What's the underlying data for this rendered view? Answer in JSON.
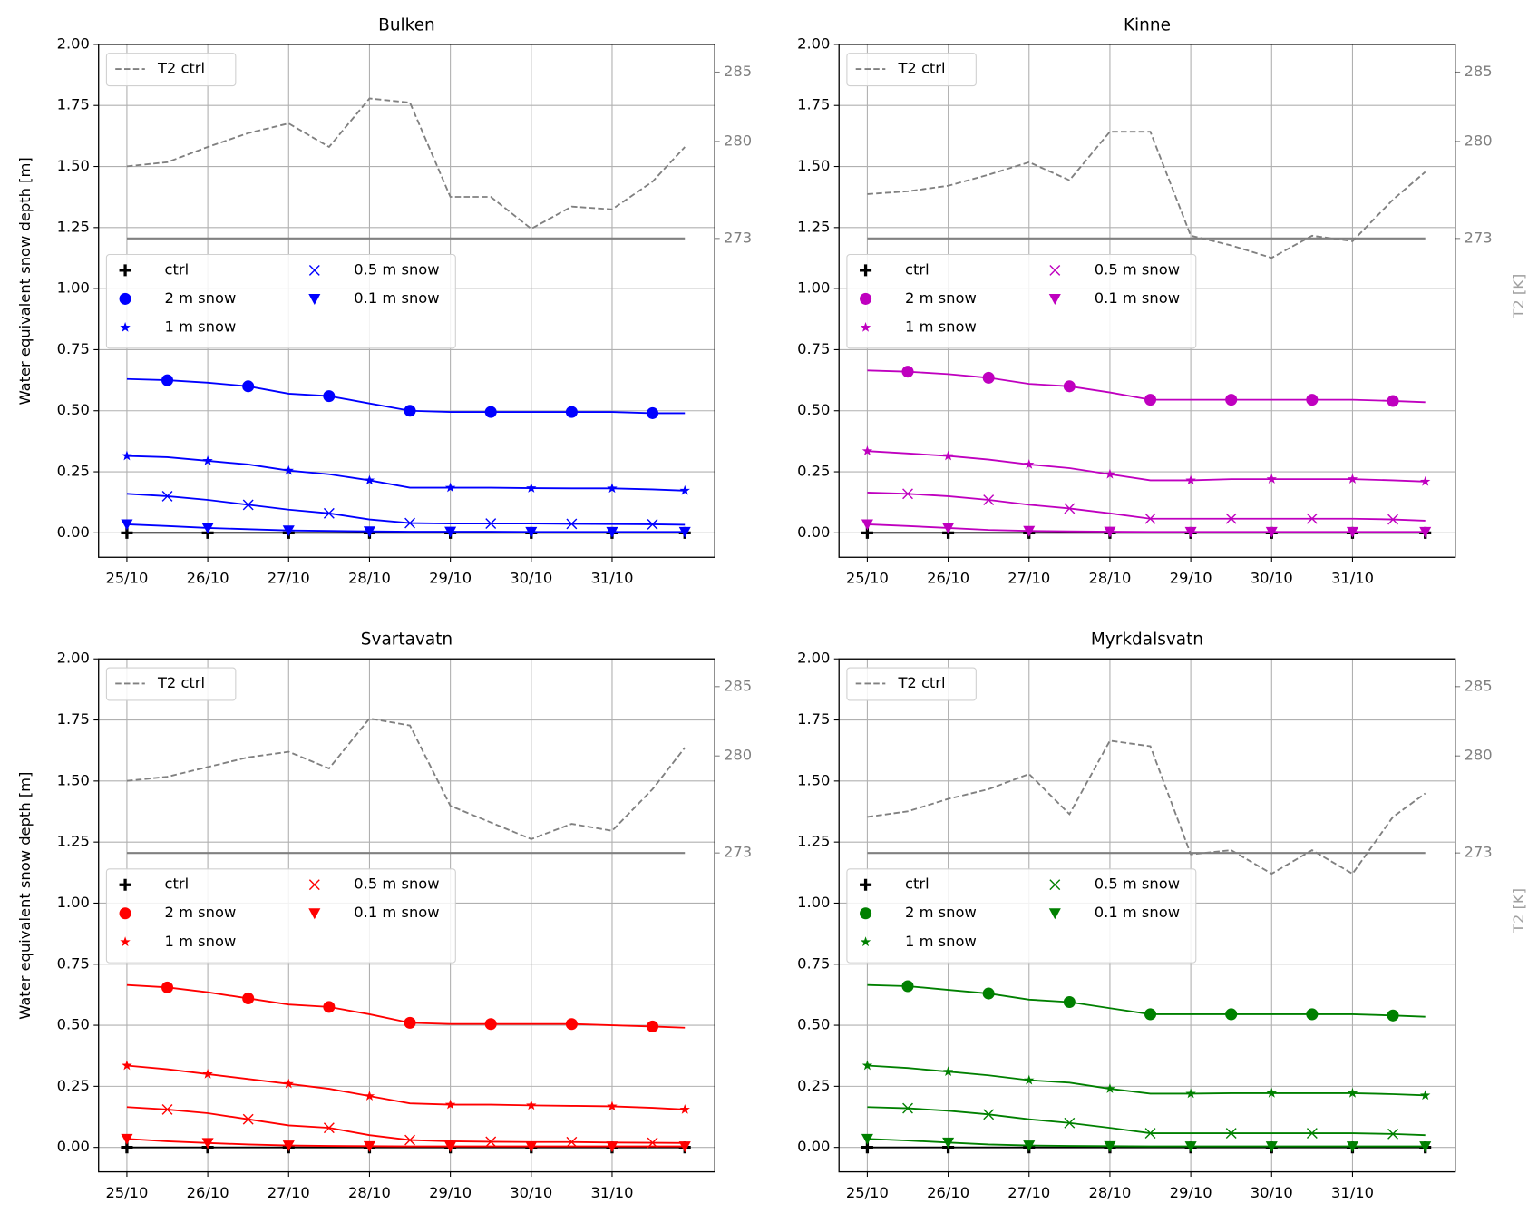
{
  "chart_data": [
    {
      "type": "line",
      "title": "Bulken",
      "ylabel": "Water equivalent snow depth [m]",
      "x": [
        0,
        0.5,
        1,
        1.5,
        2,
        2.5,
        3,
        3.5,
        4,
        4.5,
        5,
        5.5,
        6,
        6.5,
        6.9
      ],
      "xlim": [
        -0.35,
        7.27
      ],
      "xticks": [
        {
          "value": 0,
          "label": "25/10"
        },
        {
          "value": 1,
          "label": "26/10"
        },
        {
          "value": 2,
          "label": "27/10"
        },
        {
          "value": 3,
          "label": "28/10"
        },
        {
          "value": 4,
          "label": "29/10"
        },
        {
          "value": 5,
          "label": "30/10"
        },
        {
          "value": 6,
          "label": "31/10"
        }
      ],
      "ylim": [
        -0.1,
        2.0
      ],
      "yticks": [
        {
          "value": 0,
          "label": "0.00"
        },
        0.25,
        {
          "value": 0.5,
          "label": "0.50"
        },
        0.75,
        {
          "value": 1,
          "label": "1.00"
        },
        1.25,
        {
          "value": 1.5,
          "label": "1.50"
        },
        1.75,
        {
          "value": 2,
          "label": "2.00"
        }
      ],
      "y2lim": [
        250,
        287
      ],
      "y2ticks": [
        273,
        280,
        285
      ],
      "hline_y2": 273,
      "grid": true,
      "series": [
        {
          "name": "ctrl",
          "color": "#000000",
          "marker": "plus",
          "values": [
            0,
            0,
            0,
            0,
            0,
            0,
            0,
            0,
            0,
            0,
            0,
            0,
            0,
            0,
            0
          ]
        },
        {
          "name": "2 m snow",
          "color": "#0000ff",
          "marker": "circle",
          "values": [
            0.63,
            0.625,
            0.615,
            0.6,
            0.57,
            0.56,
            0.53,
            0.5,
            0.495,
            0.495,
            0.495,
            0.495,
            0.495,
            0.49,
            0.49
          ]
        },
        {
          "name": "1 m snow",
          "color": "#0000ff",
          "marker": "star",
          "values": [
            0.315,
            0.31,
            0.295,
            0.28,
            0.255,
            0.24,
            0.215,
            0.185,
            0.185,
            0.185,
            0.183,
            0.182,
            0.182,
            0.178,
            0.173
          ]
        },
        {
          "name": "0.5 m snow",
          "color": "#0000ff",
          "marker": "x",
          "values": [
            0.16,
            0.15,
            0.135,
            0.115,
            0.095,
            0.08,
            0.055,
            0.04,
            0.038,
            0.038,
            0.038,
            0.037,
            0.036,
            0.035,
            0.033
          ]
        },
        {
          "name": "0.1 m snow",
          "color": "#0000ff",
          "marker": "triangle",
          "values": [
            0.035,
            0.028,
            0.02,
            0.015,
            0.01,
            0.008,
            0.006,
            0.005,
            0.005,
            0.005,
            0.004,
            0.004,
            0.004,
            0.004,
            0.004
          ]
        },
        {
          "name": "T2 ctrl",
          "color": "#808080",
          "linestyle": "dashed",
          "axis": "y2",
          "values": [
            278.2,
            278.5,
            279.6,
            280.6,
            281.3,
            279.6,
            283.1,
            282.8,
            276,
            276,
            273.7,
            275.3,
            275.1,
            277.1,
            279.6
          ]
        }
      ]
    },
    {
      "type": "line",
      "title": "Kinne",
      "y2label": "T2 [K]",
      "x": [
        0,
        0.5,
        1,
        1.5,
        2,
        2.5,
        3,
        3.5,
        4,
        4.5,
        5,
        5.5,
        6,
        6.5,
        6.9
      ],
      "xlim": [
        -0.35,
        7.27
      ],
      "xticks": [
        {
          "value": 0,
          "label": "25/10"
        },
        {
          "value": 1,
          "label": "26/10"
        },
        {
          "value": 2,
          "label": "27/10"
        },
        {
          "value": 3,
          "label": "28/10"
        },
        {
          "value": 4,
          "label": "29/10"
        },
        {
          "value": 5,
          "label": "30/10"
        },
        {
          "value": 6,
          "label": "31/10"
        }
      ],
      "ylim": [
        -0.1,
        2.0
      ],
      "yticks": [
        {
          "value": 0,
          "label": "0.00"
        },
        0.25,
        {
          "value": 0.5,
          "label": "0.50"
        },
        0.75,
        {
          "value": 1,
          "label": "1.00"
        },
        1.25,
        {
          "value": 1.5,
          "label": "1.50"
        },
        1.75,
        {
          "value": 2,
          "label": "2.00"
        }
      ],
      "y2lim": [
        250,
        287
      ],
      "y2ticks": [
        273,
        280,
        285
      ],
      "hline_y2": 273,
      "grid": true,
      "series": [
        {
          "name": "ctrl",
          "color": "#000000",
          "marker": "plus",
          "values": [
            0,
            0,
            0,
            0,
            0,
            0,
            0,
            0,
            0,
            0,
            0,
            0,
            0,
            0,
            0
          ]
        },
        {
          "name": "2 m snow",
          "color": "#bf00bf",
          "marker": "circle",
          "values": [
            0.665,
            0.66,
            0.65,
            0.635,
            0.61,
            0.6,
            0.575,
            0.545,
            0.545,
            0.545,
            0.545,
            0.545,
            0.545,
            0.54,
            0.535
          ]
        },
        {
          "name": "1 m snow",
          "color": "#bf00bf",
          "marker": "star",
          "values": [
            0.335,
            0.325,
            0.315,
            0.3,
            0.28,
            0.265,
            0.24,
            0.215,
            0.215,
            0.22,
            0.22,
            0.22,
            0.22,
            0.215,
            0.21
          ]
        },
        {
          "name": "0.5 m snow",
          "color": "#bf00bf",
          "marker": "x",
          "values": [
            0.165,
            0.16,
            0.15,
            0.135,
            0.115,
            0.1,
            0.08,
            0.058,
            0.058,
            0.058,
            0.058,
            0.058,
            0.058,
            0.055,
            0.05
          ]
        },
        {
          "name": "0.1 m snow",
          "color": "#bf00bf",
          "marker": "triangle",
          "values": [
            0.035,
            0.028,
            0.02,
            0.012,
            0.008,
            0.006,
            0.005,
            0.004,
            0.004,
            0.004,
            0.004,
            0.004,
            0.004,
            0.004,
            0.004
          ]
        },
        {
          "name": "T2 ctrl",
          "color": "#808080",
          "linestyle": "dashed",
          "axis": "y2",
          "values": [
            276.2,
            276.4,
            276.8,
            277.6,
            278.5,
            277.2,
            280.7,
            280.7,
            273.2,
            272.5,
            271.6,
            273.2,
            272.8,
            275.8,
            277.8
          ]
        }
      ]
    },
    {
      "type": "line",
      "title": "Svartavatn",
      "ylabel": "Water equivalent snow depth [m]",
      "x": [
        0,
        0.5,
        1,
        1.5,
        2,
        2.5,
        3,
        3.5,
        4,
        4.5,
        5,
        5.5,
        6,
        6.5,
        6.9
      ],
      "xlim": [
        -0.35,
        7.27
      ],
      "xticks": [
        {
          "value": 0,
          "label": "25/10"
        },
        {
          "value": 1,
          "label": "26/10"
        },
        {
          "value": 2,
          "label": "27/10"
        },
        {
          "value": 3,
          "label": "28/10"
        },
        {
          "value": 4,
          "label": "29/10"
        },
        {
          "value": 5,
          "label": "30/10"
        },
        {
          "value": 6,
          "label": "31/10"
        }
      ],
      "ylim": [
        -0.1,
        2.0
      ],
      "yticks": [
        {
          "value": 0,
          "label": "0.00"
        },
        0.25,
        {
          "value": 0.5,
          "label": "0.50"
        },
        0.75,
        {
          "value": 1,
          "label": "1.00"
        },
        1.25,
        {
          "value": 1.5,
          "label": "1.50"
        },
        1.75,
        {
          "value": 2,
          "label": "2.00"
        }
      ],
      "y2lim": [
        250,
        287
      ],
      "y2ticks": [
        273,
        280,
        285
      ],
      "hline_y2": 273,
      "grid": true,
      "series": [
        {
          "name": "ctrl",
          "color": "#000000",
          "marker": "plus",
          "values": [
            0,
            0,
            0,
            0,
            0,
            0,
            0,
            0,
            0,
            0,
            0,
            0,
            0,
            0,
            0
          ]
        },
        {
          "name": "2 m snow",
          "color": "#ff0000",
          "marker": "circle",
          "values": [
            0.665,
            0.655,
            0.635,
            0.61,
            0.585,
            0.575,
            0.545,
            0.51,
            0.505,
            0.505,
            0.505,
            0.505,
            0.5,
            0.495,
            0.49
          ]
        },
        {
          "name": "1 m snow",
          "color": "#ff0000",
          "marker": "star",
          "values": [
            0.335,
            0.32,
            0.3,
            0.28,
            0.26,
            0.24,
            0.21,
            0.18,
            0.175,
            0.175,
            0.172,
            0.17,
            0.168,
            0.162,
            0.155
          ]
        },
        {
          "name": "0.5 m snow",
          "color": "#ff0000",
          "marker": "x",
          "values": [
            0.165,
            0.155,
            0.14,
            0.115,
            0.09,
            0.08,
            0.05,
            0.03,
            0.025,
            0.023,
            0.022,
            0.022,
            0.02,
            0.019,
            0.018
          ]
        },
        {
          "name": "0.1 m snow",
          "color": "#ff0000",
          "marker": "triangle",
          "values": [
            0.035,
            0.025,
            0.018,
            0.012,
            0.008,
            0.006,
            0.005,
            0.004,
            0.004,
            0.004,
            0.004,
            0.004,
            0.004,
            0.004,
            0.004
          ]
        },
        {
          "name": "T2 ctrl",
          "color": "#808080",
          "linestyle": "dashed",
          "axis": "y2",
          "values": [
            278.2,
            278.5,
            279.2,
            279.9,
            280.3,
            279.1,
            282.7,
            282.2,
            276.4,
            275.2,
            274,
            275.1,
            274.6,
            277.6,
            280.6
          ]
        }
      ]
    },
    {
      "type": "line",
      "title": "Myrkdalsvatn",
      "y2label": "T2 [K]",
      "x": [
        0,
        0.5,
        1,
        1.5,
        2,
        2.5,
        3,
        3.5,
        4,
        4.5,
        5,
        5.5,
        6,
        6.5,
        6.9
      ],
      "xlim": [
        -0.35,
        7.27
      ],
      "xticks": [
        {
          "value": 0,
          "label": "25/10"
        },
        {
          "value": 1,
          "label": "26/10"
        },
        {
          "value": 2,
          "label": "27/10"
        },
        {
          "value": 3,
          "label": "28/10"
        },
        {
          "value": 4,
          "label": "29/10"
        },
        {
          "value": 5,
          "label": "30/10"
        },
        {
          "value": 6,
          "label": "31/10"
        }
      ],
      "ylim": [
        -0.1,
        2.0
      ],
      "yticks": [
        {
          "value": 0,
          "label": "0.00"
        },
        0.25,
        {
          "value": 0.5,
          "label": "0.50"
        },
        0.75,
        {
          "value": 1,
          "label": "1.00"
        },
        1.25,
        {
          "value": 1.5,
          "label": "1.50"
        },
        1.75,
        {
          "value": 2,
          "label": "2.00"
        }
      ],
      "y2lim": [
        250,
        287
      ],
      "y2ticks": [
        273,
        280,
        285
      ],
      "hline_y2": 273,
      "grid": true,
      "series": [
        {
          "name": "ctrl",
          "color": "#000000",
          "marker": "plus",
          "values": [
            0,
            0,
            0,
            0,
            0,
            0,
            0,
            0,
            0,
            0,
            0,
            0,
            0,
            0,
            0
          ]
        },
        {
          "name": "2 m snow",
          "color": "#008000",
          "marker": "circle",
          "values": [
            0.665,
            0.66,
            0.645,
            0.63,
            0.605,
            0.595,
            0.57,
            0.545,
            0.545,
            0.545,
            0.545,
            0.545,
            0.545,
            0.54,
            0.535
          ]
        },
        {
          "name": "1 m snow",
          "color": "#008000",
          "marker": "star",
          "values": [
            0.335,
            0.325,
            0.31,
            0.295,
            0.275,
            0.265,
            0.24,
            0.22,
            0.22,
            0.222,
            0.222,
            0.222,
            0.222,
            0.218,
            0.213
          ]
        },
        {
          "name": "0.5 m snow",
          "color": "#008000",
          "marker": "x",
          "values": [
            0.165,
            0.16,
            0.15,
            0.135,
            0.115,
            0.1,
            0.08,
            0.058,
            0.058,
            0.058,
            0.058,
            0.058,
            0.058,
            0.055,
            0.05
          ]
        },
        {
          "name": "0.1 m snow",
          "color": "#008000",
          "marker": "triangle",
          "values": [
            0.035,
            0.028,
            0.02,
            0.012,
            0.008,
            0.006,
            0.005,
            0.004,
            0.004,
            0.004,
            0.004,
            0.004,
            0.004,
            0.004,
            0.004
          ]
        },
        {
          "name": "T2 ctrl",
          "color": "#808080",
          "linestyle": "dashed",
          "axis": "y2",
          "values": [
            275.6,
            276,
            276.9,
            277.6,
            278.7,
            275.8,
            281.1,
            280.7,
            272.9,
            273.2,
            271.5,
            273.2,
            271.5,
            275.6,
            277.3
          ]
        }
      ]
    }
  ]
}
